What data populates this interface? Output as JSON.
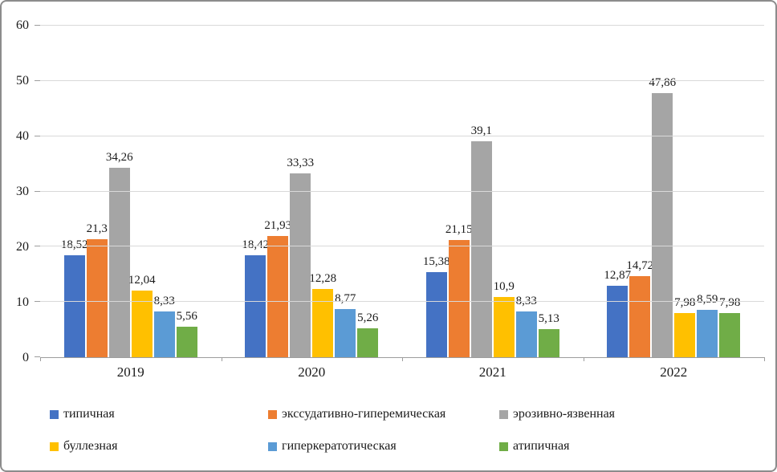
{
  "chart_data": {
    "type": "bar",
    "title": "",
    "xlabel": "",
    "ylabel": "",
    "grid": true,
    "legend_position": "bottom",
    "categories": [
      "2019",
      "2020",
      "2021",
      "2022"
    ],
    "y_axis": {
      "min": 0,
      "max": 60,
      "step": 10,
      "ticks": [
        "0",
        "10",
        "20",
        "30",
        "40",
        "50",
        "60"
      ]
    },
    "series": [
      {
        "name": "типичная",
        "color": "#4472C4",
        "values": [
          18.52,
          18.42,
          15.38,
          12.87
        ],
        "labels": [
          "18,52",
          "18,42",
          "15,38",
          "12,87"
        ]
      },
      {
        "name": "экссудативно-гиперемическая",
        "color": "#ED7D31",
        "values": [
          21.3,
          21.93,
          21.15,
          14.72
        ],
        "labels": [
          "21,3",
          "21,93",
          "21,15",
          "14,72"
        ]
      },
      {
        "name": "эрозивно-язвенная",
        "color": "#A5A5A5",
        "values": [
          34.26,
          33.33,
          39.1,
          47.86
        ],
        "labels": [
          "34,26",
          "33,33",
          "39,1",
          "47,86"
        ]
      },
      {
        "name": "буллезная",
        "color": "#FFC000",
        "values": [
          12.04,
          12.28,
          10.9,
          7.98
        ],
        "labels": [
          "12,04",
          "12,28",
          "10,9",
          "7,98"
        ]
      },
      {
        "name": "гиперкератотическая",
        "color": "#5B9BD5",
        "values": [
          8.33,
          8.77,
          8.33,
          8.59
        ],
        "labels": [
          "8,33",
          "8,77",
          "8,33",
          "8,59"
        ]
      },
      {
        "name": "атипичная",
        "color": "#70AD47",
        "values": [
          5.56,
          5.26,
          5.13,
          7.98
        ],
        "labels": [
          "5,56",
          "5,26",
          "5,13",
          "7,98"
        ]
      }
    ]
  }
}
